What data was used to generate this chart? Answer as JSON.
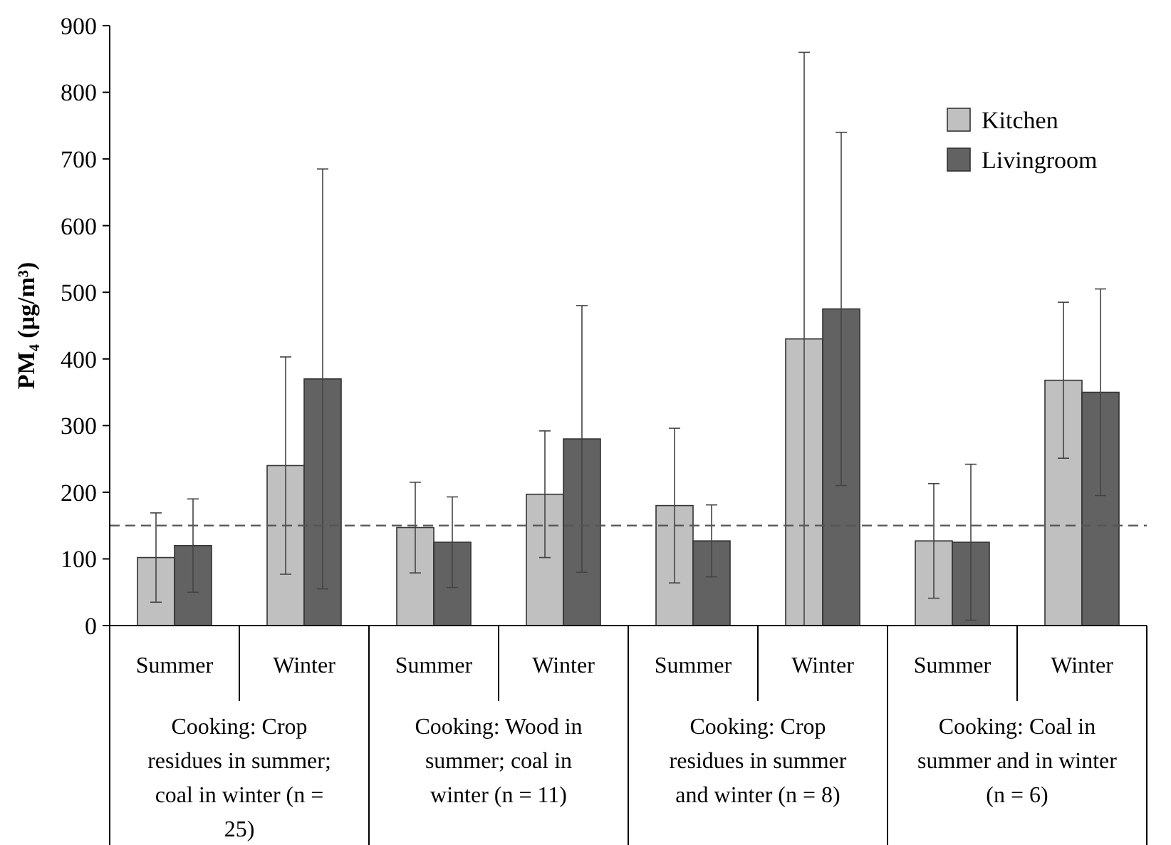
{
  "chart_data": {
    "type": "bar",
    "ylabel": "PM₄ (μg/m³)",
    "categories": [
      "Summer",
      "Winter",
      "Summer",
      "Winter",
      "Summer",
      "Winter",
      "Summer",
      "Winter"
    ],
    "series": [
      {
        "name": "Kitchen",
        "color": "#c0c0c0",
        "values": [
          102,
          240,
          147,
          197,
          180,
          430,
          127,
          368
        ],
        "errors": [
          67,
          163,
          68,
          95,
          116,
          430,
          86,
          117
        ]
      },
      {
        "name": "Livingroom",
        "color": "#626262",
        "values": [
          120,
          370,
          125,
          280,
          127,
          475,
          125,
          350
        ],
        "errors": [
          70,
          315,
          68,
          200,
          54,
          265,
          117,
          155
        ]
      }
    ],
    "ylim": [
      0,
      900
    ],
    "yticks": [
      0,
      100,
      200,
      300,
      400,
      500,
      600,
      700,
      800,
      900
    ],
    "ref_lines": [
      {
        "axis": "y",
        "value": 150,
        "line_style": "dashed",
        "color": "#555555"
      }
    ],
    "legend": "top right",
    "grid": false,
    "annotations": [
      "Cooking: Crop residues in summer; coal in winter (n = 25)",
      "Cooking: Wood in summer; coal in winter (n = 11)",
      "Cooking: Crop residues in summer and winter (n = 8)",
      "Cooking: Coal in summer and in winter (n = 6)"
    ]
  }
}
